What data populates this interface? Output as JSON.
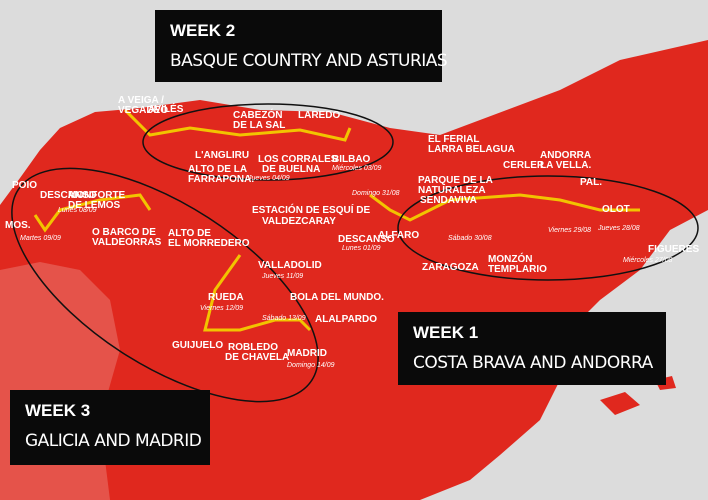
{
  "weeks": [
    {
      "title": "WEEK 2",
      "subtitle": "BASQUE COUNTRY AND ASTURIAS"
    },
    {
      "title": "WEEK 1",
      "subtitle": "COSTA BRAVA AND ANDORRA"
    },
    {
      "title": "WEEK 3",
      "subtitle": "GALICIA AND MADRID"
    }
  ],
  "places": [
    {
      "name": "A VEIGA /"
    },
    {
      "name": "VEGADEO"
    },
    {
      "name": "AVILÉS"
    },
    {
      "name": "CABEZÓN"
    },
    {
      "name": "DE LA SAL"
    },
    {
      "name": "LAREDO"
    },
    {
      "name": "L'ANGLIRU"
    },
    {
      "name": "LOS CORRALES"
    },
    {
      "name": "DE BUELNA"
    },
    {
      "name": "BILBAO"
    },
    {
      "name": "ALTO DE LA"
    },
    {
      "name": "FARRAPONA."
    },
    {
      "name": "EL FERIAL"
    },
    {
      "name": "LARRA BELAGUA"
    },
    {
      "name": "CERLER"
    },
    {
      "name": "ANDORRA"
    },
    {
      "name": "LA VELLA."
    },
    {
      "name": "PAL."
    },
    {
      "name": "FIGUERES"
    },
    {
      "name": "OLOT"
    },
    {
      "name": "PARQUE DE LA"
    },
    {
      "name": "NATURALEZA"
    },
    {
      "name": "SENDAVIVA"
    },
    {
      "name": "ZARAGOZA"
    },
    {
      "name": "MONZÓN"
    },
    {
      "name": "TEMPLARIO"
    },
    {
      "name": "ALFARO"
    },
    {
      "name": "ESTACIÓN DE ESQUÍ DE"
    },
    {
      "name": "VALDEZCARAY"
    },
    {
      "name": "DESCANSO"
    },
    {
      "name": "POIO"
    },
    {
      "name": "MOS."
    },
    {
      "name": "MONFORTE"
    },
    {
      "name": "DE LEMOS"
    },
    {
      "name": "O BARCO DE"
    },
    {
      "name": "VALDEORRAS"
    },
    {
      "name": "ALTO DE"
    },
    {
      "name": "EL MORREDERO"
    },
    {
      "name": "VALLADOLID"
    },
    {
      "name": "RUEDA"
    },
    {
      "name": "GUIJUELO"
    },
    {
      "name": "ROBLEDO"
    },
    {
      "name": "DE CHAVELA"
    },
    {
      "name": "BOLA DEL MUNDO."
    },
    {
      "name": "ALALPARDO"
    },
    {
      "name": "MADRID"
    },
    {
      "name": "Domingo 14/09"
    },
    {
      "name": "Miércoles 27/08"
    },
    {
      "name": "Jueves 04/09"
    },
    {
      "name": "Miércoles 03/09"
    },
    {
      "name": "Jueves 11/09"
    },
    {
      "name": "Domingo 31/08"
    },
    {
      "name": "Lunes 01/09"
    },
    {
      "name": "Sábado 30/08"
    },
    {
      "name": "Viernes 29/08"
    },
    {
      "name": "Jueves 28/08"
    },
    {
      "name": "Lunes 08/09"
    },
    {
      "name": "Martes 09/09"
    },
    {
      "name": "Viernes 12/09"
    },
    {
      "name": "Sábado 13/09"
    },
    {
      "name": "DESCANSO"
    }
  ]
}
